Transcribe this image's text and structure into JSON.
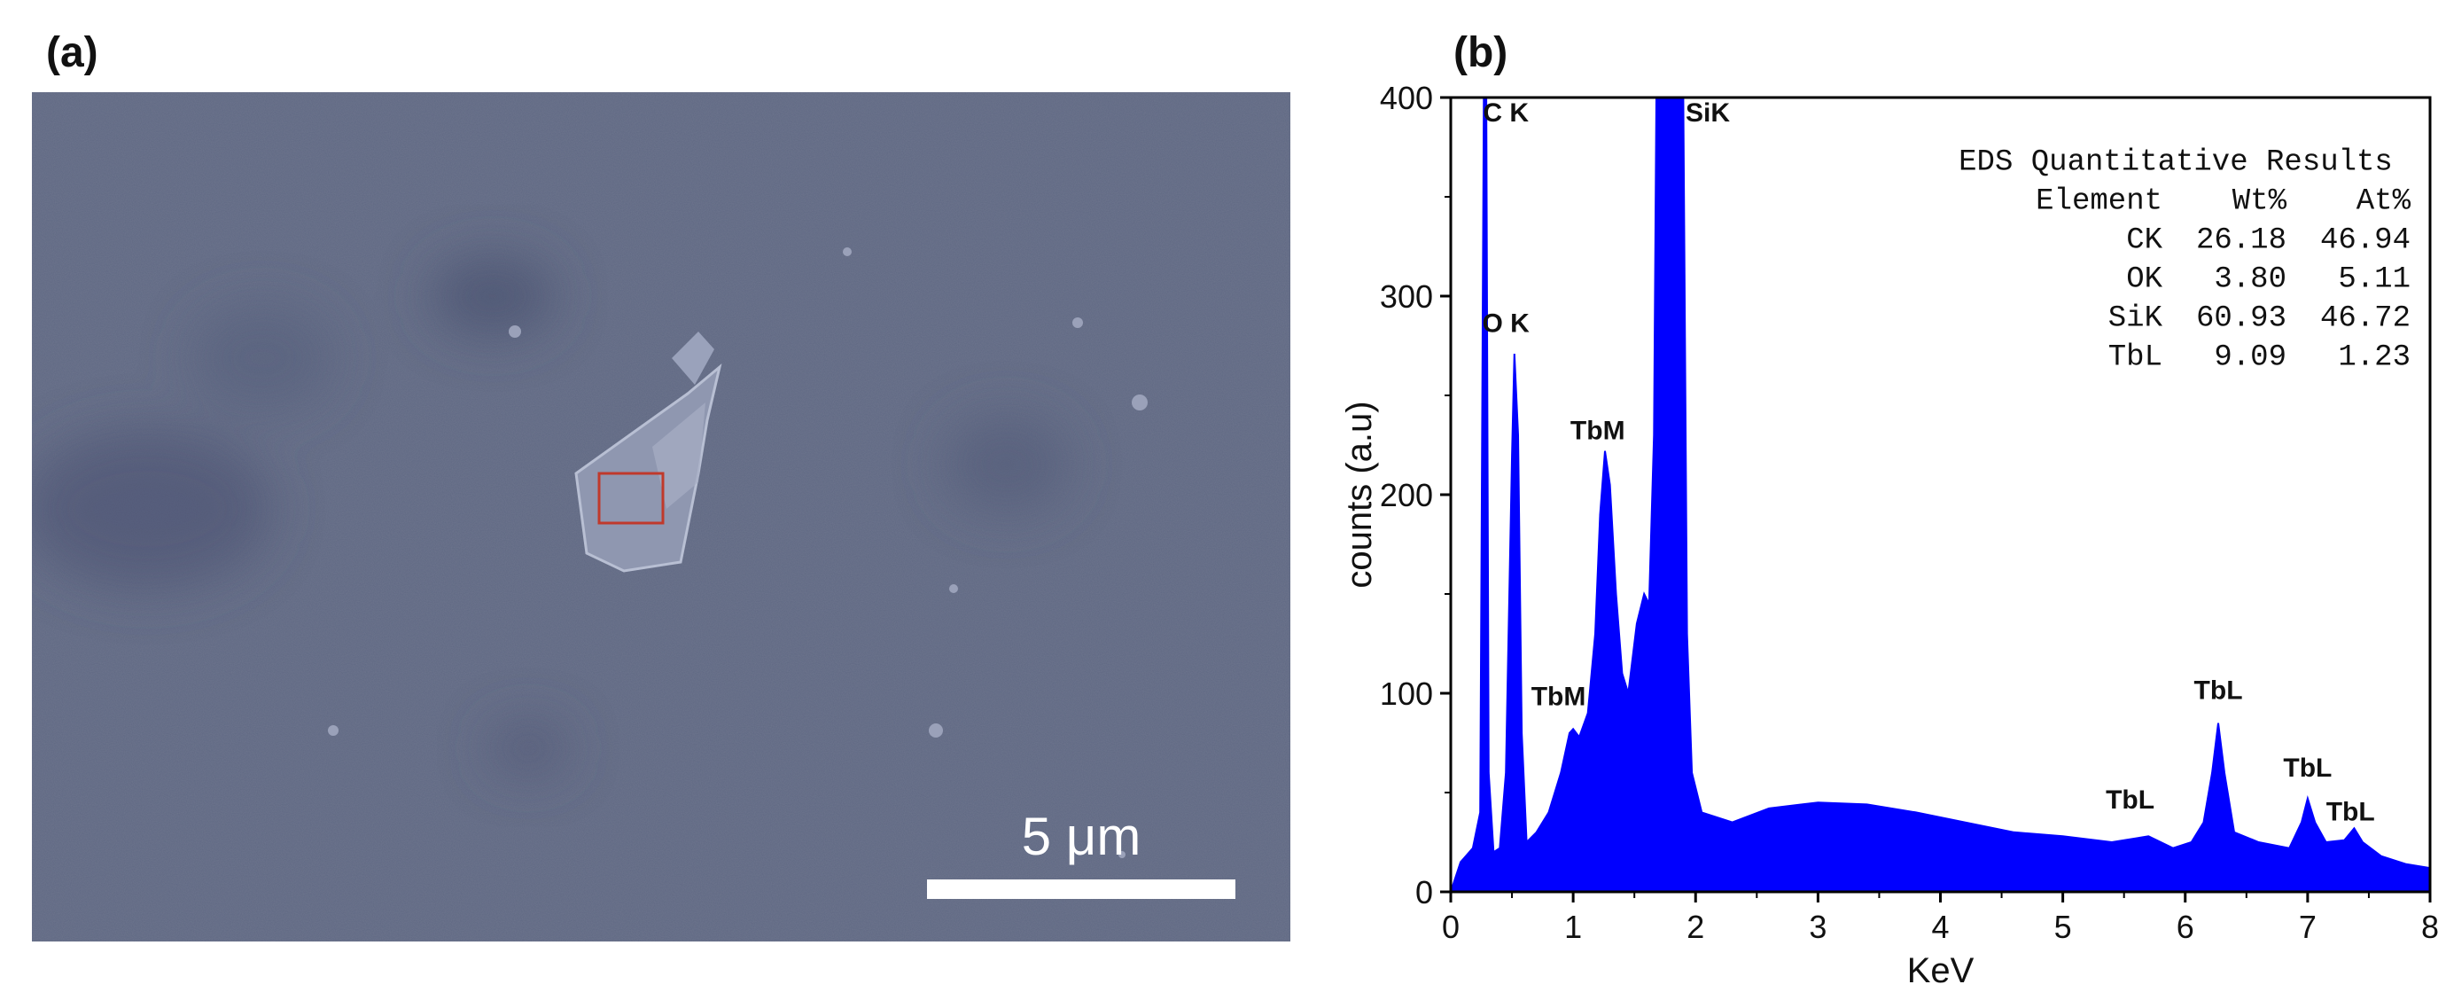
{
  "panels": {
    "a": {
      "label": "(a)"
    },
    "b": {
      "label": "(b)"
    }
  },
  "sem": {
    "scale_bar_label": "5 μm",
    "colors": {
      "background": "#5f6883",
      "scale_bar": "#ffffff",
      "roi_box": "#c0392b"
    }
  },
  "chart_data": {
    "type": "area",
    "title": "",
    "xlabel": "KeV",
    "ylabel": "counts (a.u)",
    "xlim": [
      0,
      8
    ],
    "ylim": [
      0,
      400
    ],
    "x_ticks": [
      "0",
      "1",
      "2",
      "3",
      "4",
      "5",
      "6",
      "7",
      "8"
    ],
    "y_ticks": [
      "0",
      "100",
      "200",
      "300",
      "400"
    ],
    "grid": false,
    "series": [
      {
        "color": "#0000ff",
        "points": [
          [
            0.0,
            0
          ],
          [
            0.08,
            15
          ],
          [
            0.18,
            22
          ],
          [
            0.24,
            40
          ],
          [
            0.27,
            400
          ],
          [
            0.29,
            400
          ],
          [
            0.31,
            60
          ],
          [
            0.35,
            20
          ],
          [
            0.4,
            22
          ],
          [
            0.45,
            60
          ],
          [
            0.5,
            220
          ],
          [
            0.52,
            271
          ],
          [
            0.55,
            230
          ],
          [
            0.58,
            80
          ],
          [
            0.62,
            25
          ],
          [
            0.7,
            30
          ],
          [
            0.8,
            40
          ],
          [
            0.9,
            60
          ],
          [
            0.97,
            80
          ],
          [
            1.0,
            82
          ],
          [
            1.05,
            78
          ],
          [
            1.12,
            90
          ],
          [
            1.18,
            130
          ],
          [
            1.22,
            190
          ],
          [
            1.26,
            222
          ],
          [
            1.3,
            205
          ],
          [
            1.35,
            150
          ],
          [
            1.4,
            110
          ],
          [
            1.45,
            100
          ],
          [
            1.52,
            135
          ],
          [
            1.58,
            150
          ],
          [
            1.62,
            145
          ],
          [
            1.66,
            230
          ],
          [
            1.68,
            400
          ],
          [
            1.9,
            400
          ],
          [
            1.93,
            130
          ],
          [
            1.97,
            60
          ],
          [
            2.05,
            40
          ],
          [
            2.3,
            35
          ],
          [
            2.6,
            42
          ],
          [
            3.0,
            45
          ],
          [
            3.4,
            44
          ],
          [
            3.8,
            40
          ],
          [
            4.2,
            35
          ],
          [
            4.6,
            30
          ],
          [
            5.0,
            28
          ],
          [
            5.4,
            25
          ],
          [
            5.7,
            28
          ],
          [
            5.9,
            22
          ],
          [
            6.05,
            25
          ],
          [
            6.15,
            35
          ],
          [
            6.22,
            60
          ],
          [
            6.27,
            85
          ],
          [
            6.32,
            60
          ],
          [
            6.4,
            30
          ],
          [
            6.6,
            25
          ],
          [
            6.85,
            22
          ],
          [
            6.95,
            35
          ],
          [
            7.0,
            47
          ],
          [
            7.06,
            35
          ],
          [
            7.15,
            25
          ],
          [
            7.3,
            26
          ],
          [
            7.38,
            32
          ],
          [
            7.45,
            25
          ],
          [
            7.6,
            18
          ],
          [
            7.8,
            14
          ],
          [
            8.0,
            12
          ]
        ]
      }
    ],
    "annotations": [
      {
        "text": "C K",
        "x": 0.45,
        "y": 388
      },
      {
        "text": "SiK",
        "x": 2.1,
        "y": 388
      },
      {
        "text": "O K",
        "x": 0.45,
        "y": 282
      },
      {
        "text": "TbM",
        "x": 1.2,
        "y": 228
      },
      {
        "text": "TbM",
        "x": 0.88,
        "y": 94
      },
      {
        "text": "TbL",
        "x": 5.55,
        "y": 42
      },
      {
        "text": "TbL",
        "x": 6.27,
        "y": 97
      },
      {
        "text": "TbL",
        "x": 7.0,
        "y": 58
      },
      {
        "text": "TbL",
        "x": 7.35,
        "y": 36
      }
    ],
    "results_table": {
      "title": "EDS Quantitative Results",
      "headers": [
        "Element",
        "Wt%",
        "At%"
      ],
      "rows": [
        [
          "CK",
          "26.18",
          "46.94"
        ],
        [
          "OK",
          "3.80",
          "5.11"
        ],
        [
          "SiK",
          "60.93",
          "46.72"
        ],
        [
          "TbL",
          "9.09",
          "1.23"
        ]
      ]
    }
  }
}
